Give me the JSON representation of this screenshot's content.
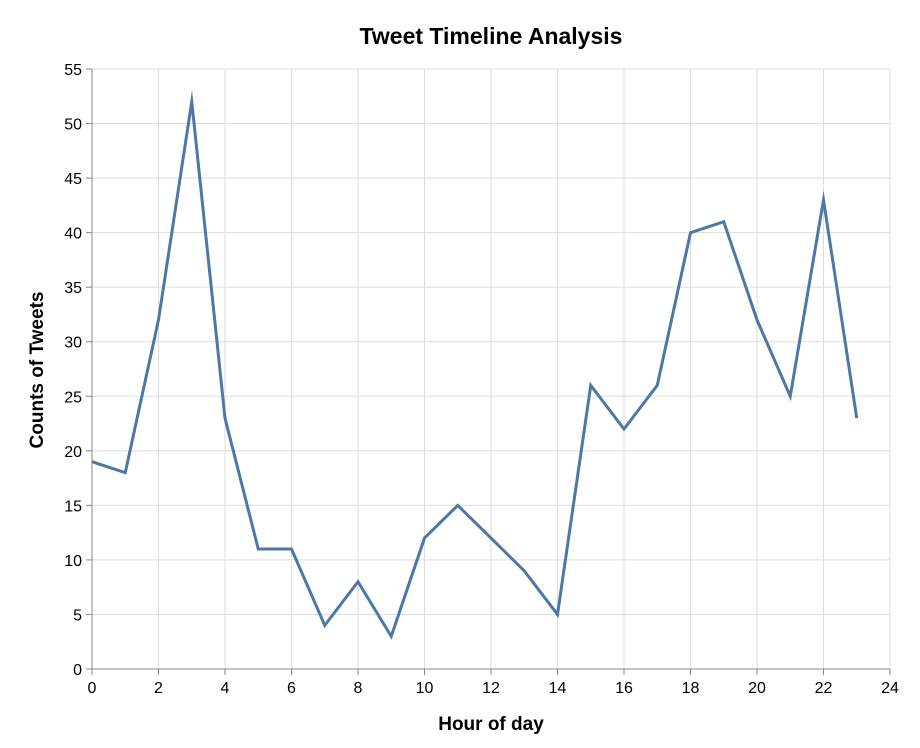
{
  "chart_data": {
    "type": "line",
    "title": "Tweet Timeline Analysis",
    "xlabel": "Hour of day",
    "ylabel": "Counts of Tweets",
    "xlim": [
      0,
      24
    ],
    "ylim": [
      0,
      55
    ],
    "x_ticks": [
      "0",
      "2",
      "4",
      "6",
      "8",
      "10",
      "12",
      "14",
      "16",
      "18",
      "20",
      "22",
      "24"
    ],
    "y_ticks": [
      "0",
      "5",
      "10",
      "15",
      "20",
      "25",
      "30",
      "35",
      "40",
      "45",
      "50",
      "55"
    ],
    "grid": true,
    "legend": "none",
    "series": [
      {
        "color": "#4c78a8",
        "x": [
          0,
          1,
          2,
          3,
          4,
          5,
          6,
          7,
          8,
          9,
          10,
          11,
          12,
          13,
          14,
          15,
          16,
          17,
          18,
          19,
          20,
          21,
          22,
          23
        ],
        "y": [
          19,
          18,
          32,
          52,
          23,
          11,
          11,
          4,
          8,
          3,
          12,
          15,
          12,
          9,
          5,
          26,
          22,
          26,
          40,
          41,
          32,
          25,
          43,
          23
        ]
      }
    ]
  },
  "colors": {
    "grid": "#dddddd",
    "axis": "#888888",
    "line": "#4c78a8"
  }
}
